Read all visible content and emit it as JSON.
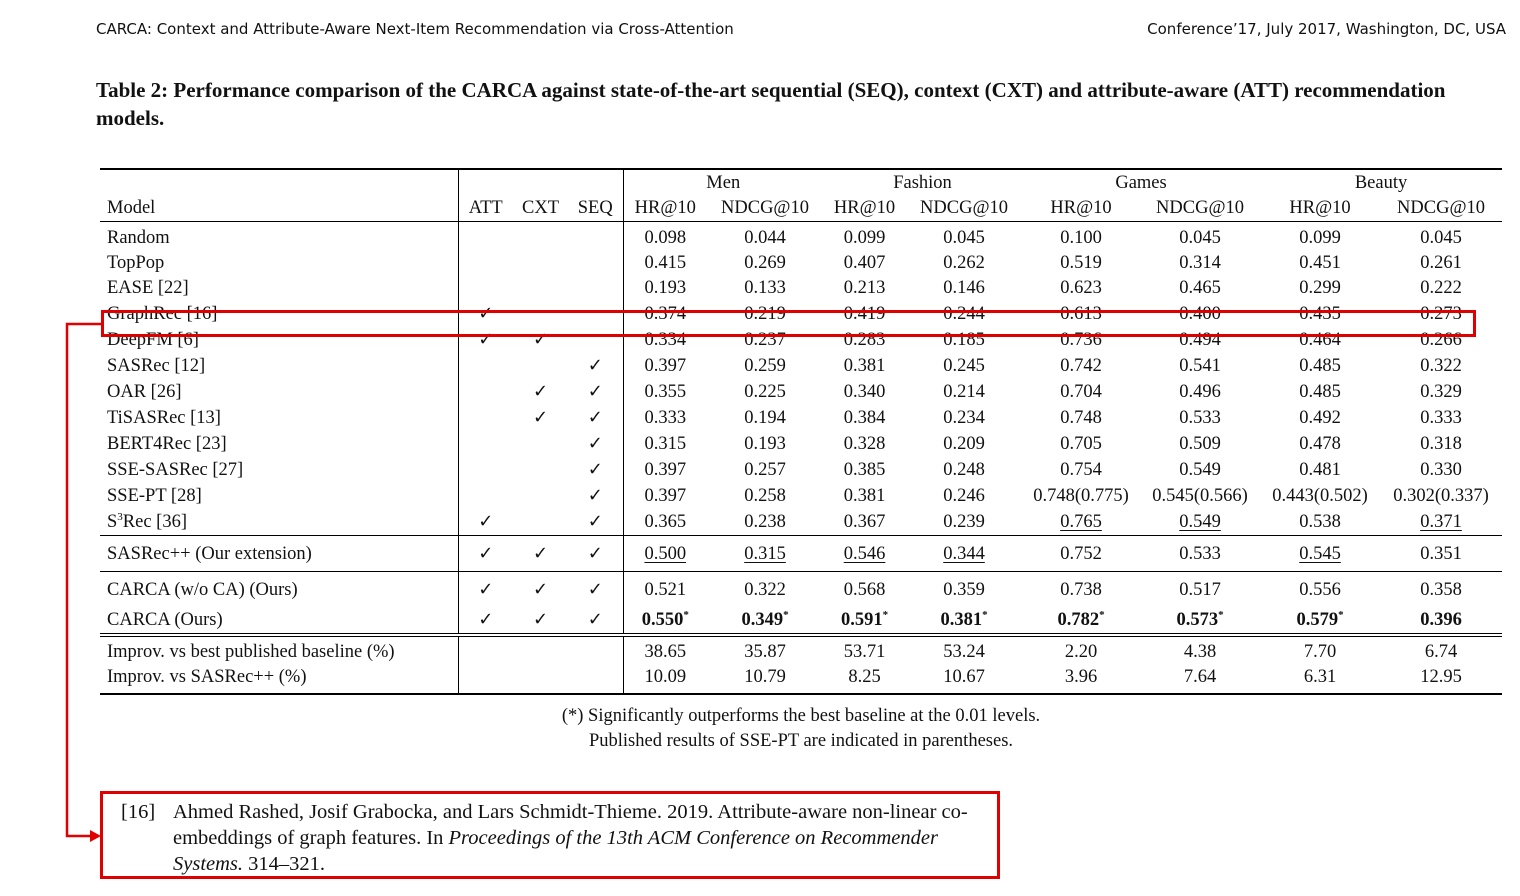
{
  "header": {
    "left": "CARCA: Context and Attribute-Aware Next-Item Recommendation via Cross-Attention",
    "right": "Conference’17, July 2017, Washington, DC, USA"
  },
  "caption": "Table 2: Performance comparison of the CARCA against state-of-the-art sequential (SEQ), context (CXT) and attribute-aware (ATT) recommendation models.",
  "table": {
    "model_header": "Model",
    "flag_headers": [
      "ATT",
      "CXT",
      "SEQ"
    ],
    "datasets": [
      "Men",
      "Fashion",
      "Games",
      "Beauty"
    ],
    "metrics": [
      "HR@10",
      "NDCG@10",
      "HR@10",
      "NDCG@10",
      "HR@10",
      "NDCG@10",
      "HR@10",
      "NDCG@10"
    ],
    "check_mark": "✓",
    "rows_baselines": [
      {
        "model": "Random",
        "att": "",
        "cxt": "",
        "seq": "",
        "values": [
          "0.098",
          "0.044",
          "0.099",
          "0.045",
          "0.100",
          "0.045",
          "0.099",
          "0.045"
        ]
      },
      {
        "model": "TopPop",
        "att": "",
        "cxt": "",
        "seq": "",
        "values": [
          "0.415",
          "0.269",
          "0.407",
          "0.262",
          "0.519",
          "0.314",
          "0.451",
          "0.261"
        ]
      },
      {
        "model": "EASE [22]",
        "att": "",
        "cxt": "",
        "seq": "",
        "values": [
          "0.193",
          "0.133",
          "0.213",
          "0.146",
          "0.623",
          "0.465",
          "0.299",
          "0.222"
        ]
      },
      {
        "model": "GraphRec [16]",
        "att": "✓",
        "cxt": "",
        "seq": "",
        "values": [
          "0.374",
          "0.219",
          "0.419",
          "0.244",
          "0.613",
          "0.400",
          "0.435",
          "0.273"
        ]
      },
      {
        "model": "DeepFM [6]",
        "att": "✓",
        "cxt": "✓",
        "seq": "",
        "values": [
          "0.334",
          "0.237",
          "0.283",
          "0.185",
          "0.736",
          "0.494",
          "0.464",
          "0.266"
        ]
      },
      {
        "model": "SASRec [12]",
        "att": "",
        "cxt": "",
        "seq": "✓",
        "values": [
          "0.397",
          "0.259",
          "0.381",
          "0.245",
          "0.742",
          "0.541",
          "0.485",
          "0.322"
        ]
      },
      {
        "model": "OAR [26]",
        "att": "",
        "cxt": "✓",
        "seq": "✓",
        "values": [
          "0.355",
          "0.225",
          "0.340",
          "0.214",
          "0.704",
          "0.496",
          "0.485",
          "0.329"
        ]
      },
      {
        "model": "TiSASRec [13]",
        "att": "",
        "cxt": "✓",
        "seq": "✓",
        "values": [
          "0.333",
          "0.194",
          "0.384",
          "0.234",
          "0.748",
          "0.533",
          "0.492",
          "0.333"
        ]
      },
      {
        "model": "BERT4Rec [23]",
        "att": "",
        "cxt": "",
        "seq": "✓",
        "values": [
          "0.315",
          "0.193",
          "0.328",
          "0.209",
          "0.705",
          "0.509",
          "0.478",
          "0.318"
        ]
      },
      {
        "model": "SSE-SASRec [27]",
        "att": "",
        "cxt": "",
        "seq": "✓",
        "values": [
          "0.397",
          "0.257",
          "0.385",
          "0.248",
          "0.754",
          "0.549",
          "0.481",
          "0.330"
        ]
      },
      {
        "model": "SSE-PT [28]",
        "att": "",
        "cxt": "",
        "seq": "✓",
        "values": [
          "0.397",
          "0.258",
          "0.381",
          "0.246",
          "0.748(0.775)",
          "0.545(0.566)",
          "0.443(0.502)",
          "0.302(0.337)"
        ]
      },
      {
        "model_base": "S",
        "model_sup": "3",
        "model_rest": "Rec [36]",
        "att": "✓",
        "cxt": "",
        "seq": "✓",
        "values": [
          "0.365",
          "0.238",
          "0.367",
          "0.239",
          "0.765",
          "0.549",
          "0.538",
          "0.371"
        ],
        "underlined": [
          4,
          5,
          7
        ]
      }
    ],
    "row_extension": {
      "model": "SASRec++ (Our extension)",
      "att": "✓",
      "cxt": "✓",
      "seq": "✓",
      "values": [
        "0.500",
        "0.315",
        "0.546",
        "0.344",
        "0.752",
        "0.533",
        "0.545",
        "0.351"
      ],
      "underlined": [
        0,
        1,
        2,
        3,
        6
      ]
    },
    "rows_ours": [
      {
        "model": "CARCA (w/o CA) (Ours)",
        "att": "✓",
        "cxt": "✓",
        "seq": "✓",
        "values": [
          "0.521",
          "0.322",
          "0.568",
          "0.359",
          "0.738",
          "0.517",
          "0.556",
          "0.358"
        ]
      },
      {
        "model": "CARCA (Ours)",
        "att": "✓",
        "cxt": "✓",
        "seq": "✓",
        "values": [
          "0.550",
          "0.349",
          "0.591",
          "0.381",
          "0.782",
          "0.573",
          "0.579",
          "0.396"
        ],
        "starred": [
          0,
          1,
          2,
          3,
          4,
          5,
          6
        ],
        "sig_mark": "*"
      }
    ],
    "rows_improv": [
      {
        "model": "Improv. vs best published baseline (%)",
        "values": [
          "38.65",
          "35.87",
          "53.71",
          "53.24",
          "2.20",
          "4.38",
          "7.70",
          "6.74"
        ]
      },
      {
        "model": "Improv. vs SASRec++ (%)",
        "values": [
          "10.09",
          "10.79",
          "8.25",
          "10.67",
          "3.96",
          "7.64",
          "6.31",
          "12.95"
        ]
      }
    ]
  },
  "notes": [
    "(*) Significantly outperforms the best baseline at the 0.01 levels.",
    "Published results of SSE-PT are indicated in parentheses."
  ],
  "reference": {
    "number": "[16]",
    "authors": "Ahmed Rashed, Josif Grabocka, and Lars Schmidt-Thieme. 2019. Attribute-aware non-linear co-embeddings of graph features. In ",
    "venue": "Proceedings of the 13th ACM Conference on Recommender Systems.",
    "pages": " 314–321."
  },
  "highlight_color": "#e00000"
}
